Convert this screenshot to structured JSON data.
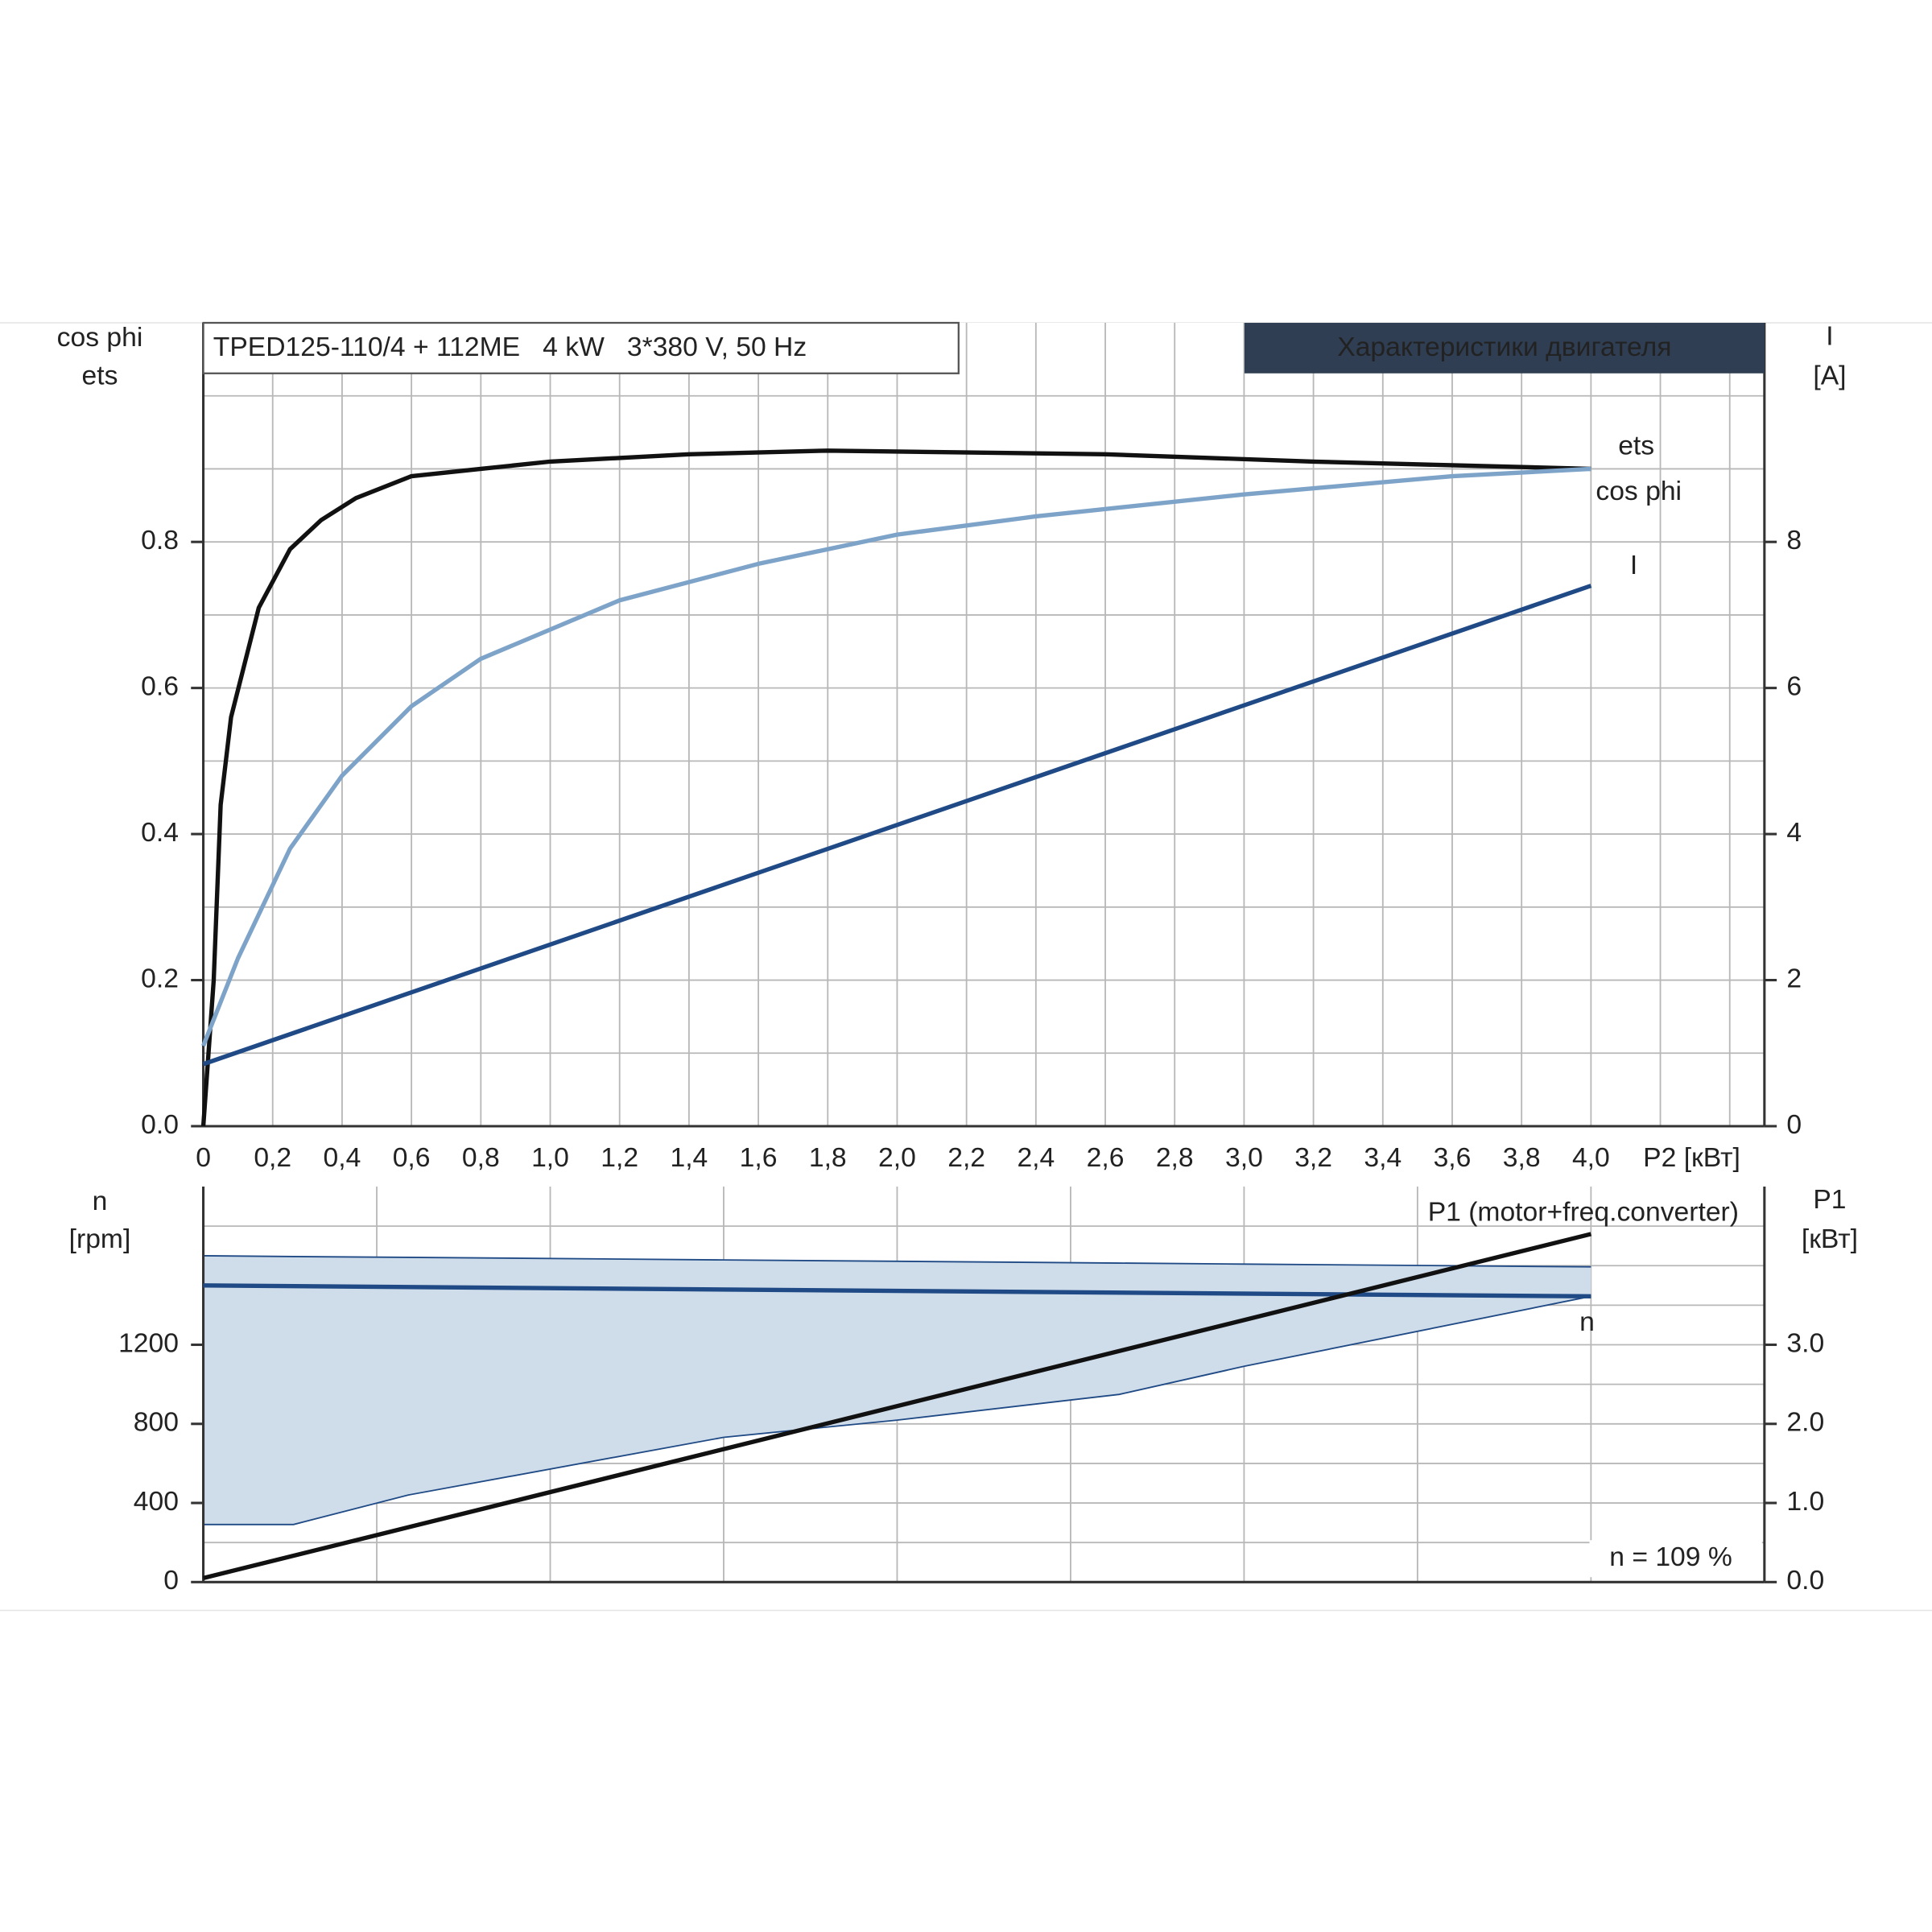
{
  "chart_data": [
    {
      "type": "line",
      "title": "Характеристики двигателя",
      "subtitle": "TPED125-110/4 + 112ME   4 kW   3*380 V, 50 Hz",
      "ylabel_lines": [
        "cos phi",
        "ets"
      ],
      "y2label_lines": [
        "I",
        "[A]"
      ],
      "xlabel": "P2 [кВт]",
      "xlim": [
        0,
        4.5
      ],
      "xticks": [
        0,
        {
          "value": 0.2,
          "label": "0,2"
        },
        {
          "value": 0.4,
          "label": "0,4"
        },
        {
          "value": 0.6,
          "label": "0,6"
        },
        {
          "value": 0.8,
          "label": "0,8"
        },
        {
          "value": 1.0,
          "label": "1,0"
        },
        {
          "value": 1.2,
          "label": "1,2"
        },
        {
          "value": 1.4,
          "label": "1,4"
        },
        {
          "value": 1.6,
          "label": "1,6"
        },
        {
          "value": 1.8,
          "label": "1,8"
        },
        {
          "value": 2.0,
          "label": "2,0"
        },
        {
          "value": 2.2,
          "label": "2,2"
        },
        {
          "value": 2.4,
          "label": "2,4"
        },
        {
          "value": 2.6,
          "label": "2,6"
        },
        {
          "value": 2.8,
          "label": "2,8"
        },
        {
          "value": 3.0,
          "label": "3,0"
        },
        {
          "value": 3.2,
          "label": "3,2"
        },
        {
          "value": 3.4,
          "label": "3,4"
        },
        {
          "value": 3.6,
          "label": "3,6"
        },
        {
          "value": 3.8,
          "label": "3,8"
        },
        {
          "value": 4.0,
          "label": "4,0"
        }
      ],
      "xgrid": [
        4.2,
        4.4
      ],
      "ylim": [
        0,
        1.1
      ],
      "yticks": [
        {
          "value": 0,
          "label": "0.0"
        },
        0.2,
        0.4,
        0.6,
        0.8
      ],
      "ygrid": [
        0.1,
        0.3,
        0.5,
        0.7,
        0.9,
        1.0
      ],
      "y2lim": [
        0,
        11
      ],
      "y2ticks": [
        0,
        2,
        4,
        6,
        8
      ],
      "series": [
        {
          "name": "ets",
          "color": "#111111",
          "x": [
            0,
            0.03,
            0.05,
            0.08,
            0.16,
            0.25,
            0.34,
            0.44,
            0.6,
            0.8,
            1.0,
            1.4,
            1.8,
            2.6,
            3.2,
            3.6,
            4.0
          ],
          "values": [
            0,
            0.2,
            0.44,
            0.56,
            0.71,
            0.79,
            0.83,
            0.86,
            0.89,
            0.9,
            0.91,
            0.92,
            0.925,
            0.92,
            0.91,
            0.905,
            0.9
          ]
        },
        {
          "name": "cos phi",
          "color": "#7ea3c8",
          "x": [
            0,
            0.1,
            0.25,
            0.4,
            0.6,
            0.8,
            1.2,
            1.6,
            2.0,
            2.4,
            3.0,
            3.6,
            4.0
          ],
          "values": [
            0.11,
            0.23,
            0.38,
            0.48,
            0.575,
            0.64,
            0.72,
            0.77,
            0.81,
            0.835,
            0.865,
            0.89,
            0.9
          ]
        },
        {
          "name": "I",
          "color": "#1f4a85",
          "axis": "y2",
          "x": [
            0,
            4.0
          ],
          "values": [
            0.85,
            7.4
          ]
        }
      ]
    },
    {
      "type": "line",
      "ylabel_lines": [
        "n",
        "[rpm]"
      ],
      "y2label_lines": [
        "P1",
        "[кВт]"
      ],
      "annotation": "n = 109 %",
      "xlim": [
        0,
        4.5
      ],
      "xgrid": [
        0.5,
        1.0,
        1.5,
        2.0,
        2.5,
        3.0,
        3.5,
        4.0
      ],
      "ylim": [
        0,
        2000
      ],
      "yticks": [
        0,
        400,
        800,
        1200
      ],
      "ygrid": [
        200,
        600,
        1000,
        1400,
        1600,
        1800
      ],
      "y2lim": [
        0,
        5
      ],
      "y2ticks": [
        {
          "value": 0,
          "label": "0.0"
        },
        {
          "value": 1,
          "label": "1.0"
        },
        {
          "value": 2,
          "label": "2.0"
        },
        {
          "value": 3,
          "label": "3.0"
        }
      ],
      "band": {
        "color": "#cfdcea",
        "x": [
          0,
          0.26,
          0.59,
          1.5,
          2.0,
          2.64,
          3.0,
          4.0
        ],
        "upper": [
          1650,
          1646,
          1642,
          1629,
          1622,
          1613,
          1608,
          1594
        ],
        "lower": [
          291,
          291,
          440,
          732,
          819,
          949,
          1091,
          1445
        ]
      },
      "series": [
        {
          "name": "n",
          "color": "#1f4a85",
          "x": [
            0,
            4.0
          ],
          "values": [
            1500,
            1445
          ]
        },
        {
          "name": "P1 (motor+freq.converter)",
          "color": "#111111",
          "axis": "y2",
          "x": [
            0,
            4.0
          ],
          "values": [
            0.05,
            4.4
          ]
        }
      ]
    }
  ]
}
